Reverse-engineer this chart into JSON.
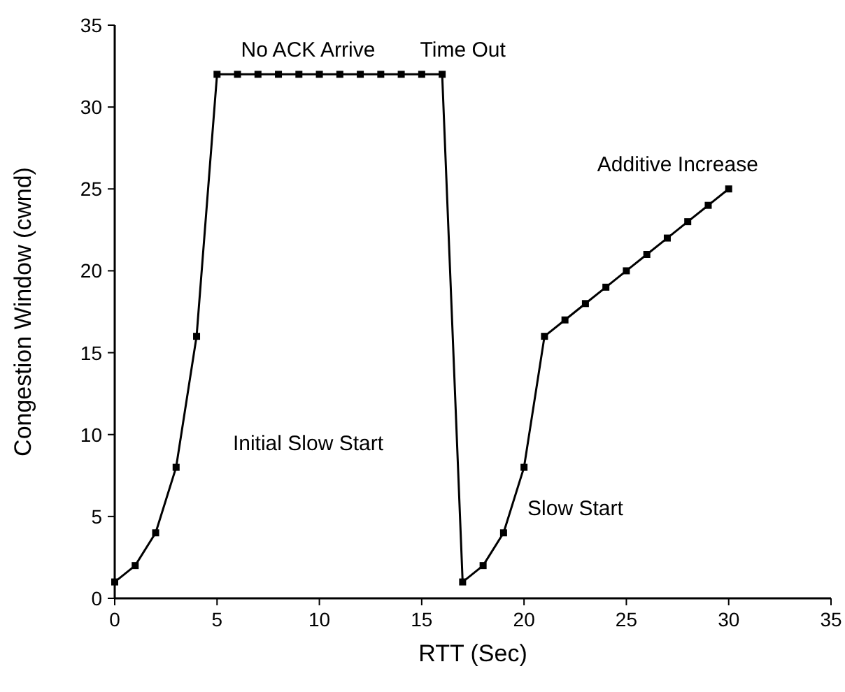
{
  "chart_data": {
    "type": "line",
    "xlabel": "RTT (Sec)",
    "ylabel": "Congestion Window (cwnd)",
    "x": [
      0,
      1,
      2,
      3,
      4,
      5,
      6,
      7,
      8,
      9,
      10,
      11,
      12,
      13,
      14,
      15,
      16,
      17,
      18,
      19,
      20,
      21,
      22,
      23,
      24,
      25,
      26,
      27,
      28,
      29,
      30
    ],
    "series": [
      {
        "color": "#000000",
        "values": [
          1,
          2,
          4,
          8,
          16,
          32,
          32,
          32,
          32,
          32,
          32,
          32,
          32,
          32,
          32,
          32,
          32,
          1,
          2,
          4,
          8,
          16,
          17,
          18,
          19,
          20,
          21,
          22,
          23,
          24,
          25
        ]
      }
    ],
    "xlim": [
      0,
      35
    ],
    "ylim": [
      0,
      35
    ],
    "xticks": [
      0,
      5,
      10,
      15,
      20,
      25,
      30,
      35
    ],
    "yticks": [
      0,
      5,
      10,
      15,
      20,
      25,
      30,
      35
    ],
    "marker": "square",
    "line_style": "solid",
    "grid": false,
    "annotations": [
      "No ACK Arrive",
      "Time Out",
      "Initial Slow Start",
      "Slow Start",
      "Additive Increase"
    ]
  }
}
